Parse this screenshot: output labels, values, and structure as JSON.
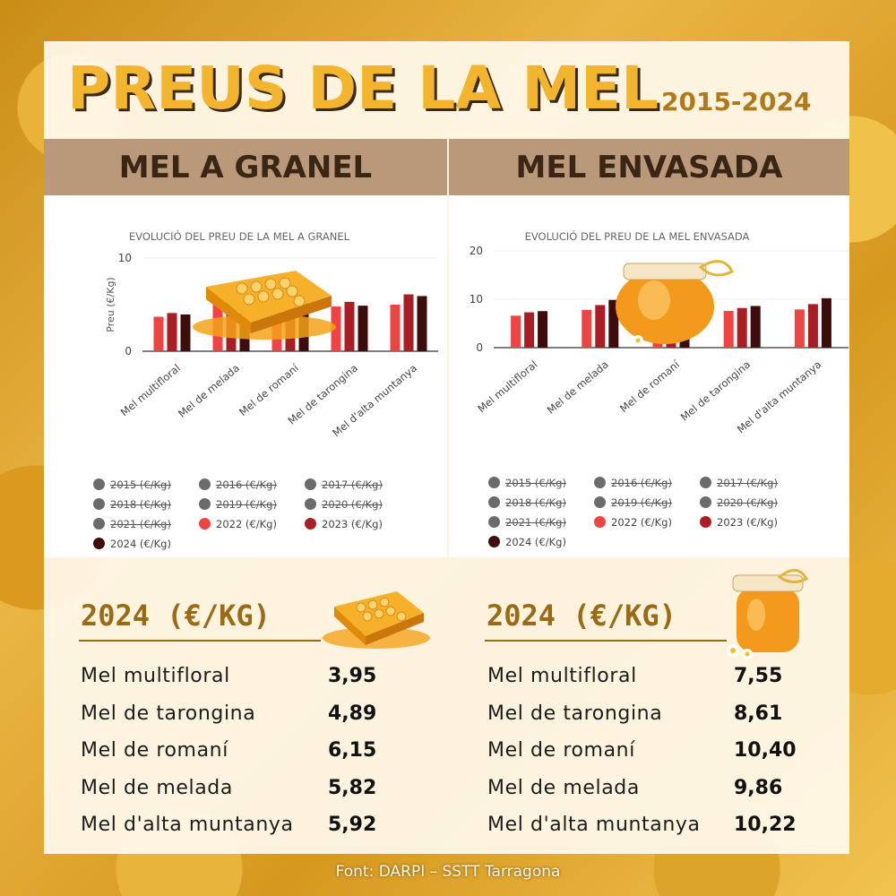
{
  "title": "PREUS DE LA MEL",
  "years": "2015-2024",
  "headers": {
    "left": "MEL A GRANEL",
    "right": "MEL ENVASADA"
  },
  "source": "Font: DARPI – SSTT Tarragona",
  "colors": {
    "2022": "#ef4444",
    "2023": "#a81e24",
    "2024": "#3d0c0c",
    "hidden": "#6b6b6b"
  },
  "legend": [
    {
      "label": "2015 (€/Kg)",
      "visible": false
    },
    {
      "label": "2016 (€/Kg)",
      "visible": false
    },
    {
      "label": "2017 (€/Kg)",
      "visible": false
    },
    {
      "label": "2018 (€/Kg)",
      "visible": false
    },
    {
      "label": "2019 (€/Kg)",
      "visible": false
    },
    {
      "label": "2020 (€/Kg)",
      "visible": false
    },
    {
      "label": "2021 (€/Kg)",
      "visible": false
    },
    {
      "label": "2022 (€/Kg)",
      "visible": true
    },
    {
      "label": "2023 (€/Kg)",
      "visible": true
    },
    {
      "label": "2024 (€/Kg)",
      "visible": true
    }
  ],
  "chart_data": [
    {
      "type": "bar",
      "title": "EVOLUCIÓ DEL PREU DE LA MEL A GRANEL",
      "ylabel": "Preu (€/Kg)",
      "xlabel": "",
      "ylim": [
        0,
        10
      ],
      "yticks": [
        0,
        10
      ],
      "grid": false,
      "categories": [
        "Mel multifloral",
        "Mel de melada",
        "Mel de romaní",
        "Mel de tarongina",
        "Mel d'alta muntanya"
      ],
      "series": [
        {
          "name": "2022 (€/Kg)",
          "values": [
            3.7,
            5.1,
            5.4,
            4.8,
            5.0
          ]
        },
        {
          "name": "2023 (€/Kg)",
          "values": [
            4.1,
            5.9,
            6.4,
            5.3,
            6.1
          ]
        },
        {
          "name": "2024 (€/Kg)",
          "values": [
            3.95,
            5.82,
            6.15,
            4.89,
            5.92
          ]
        }
      ]
    },
    {
      "type": "bar",
      "title": "EVOLUCIÓ DEL PREU DE LA MEL ENVASADA",
      "ylabel": "",
      "xlabel": "",
      "ylim": [
        0,
        20
      ],
      "yticks": [
        0,
        10,
        20
      ],
      "grid": false,
      "categories": [
        "Mel multifloral",
        "Mel de melada",
        "Mel de romaní",
        "Mel de tarongina",
        "Mel d'alta muntanya"
      ],
      "series": [
        {
          "name": "2022 (€/Kg)",
          "values": [
            6.6,
            7.8,
            7.8,
            7.6,
            7.9
          ]
        },
        {
          "name": "2023 (€/Kg)",
          "values": [
            7.3,
            8.8,
            9.3,
            8.2,
            9.0
          ]
        },
        {
          "name": "2024 (€/Kg)",
          "values": [
            7.55,
            9.86,
            10.4,
            8.61,
            10.22
          ]
        }
      ]
    }
  ],
  "tables": {
    "left": {
      "title": "2024 (€/KG)",
      "rows": [
        {
          "label": "Mel multifloral",
          "value": "3,95"
        },
        {
          "label": "Mel de tarongina",
          "value": "4,89"
        },
        {
          "label": "Mel de romaní",
          "value": "6,15"
        },
        {
          "label": "Mel de melada",
          "value": "5,82"
        },
        {
          "label": "Mel d'alta muntanya",
          "value": "5,92"
        }
      ]
    },
    "right": {
      "title": "2024 (€/KG)",
      "rows": [
        {
          "label": "Mel multifloral",
          "value": "7,55"
        },
        {
          "label": "Mel de tarongina",
          "value": "8,61"
        },
        {
          "label": "Mel de romaní",
          "value": "10,40"
        },
        {
          "label": "Mel de melada",
          "value": "9,86"
        },
        {
          "label": "Mel d'alta muntanya",
          "value": "10,22"
        }
      ]
    }
  },
  "icons": {
    "honeycomb": "honeycomb-icon",
    "honey_jar": "honey-jar-icon"
  }
}
